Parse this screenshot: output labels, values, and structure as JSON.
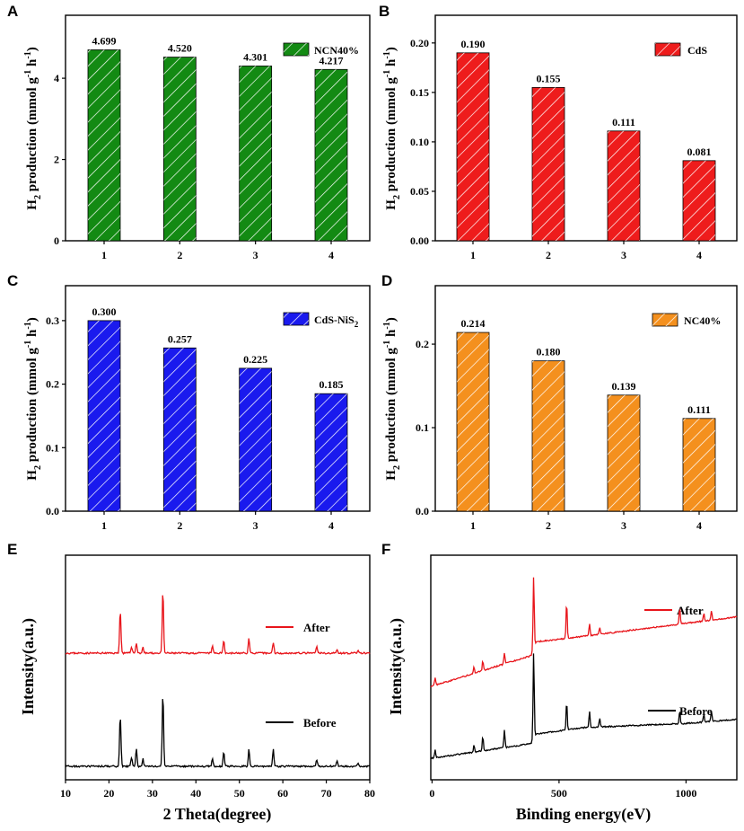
{
  "chart_data": [
    {
      "panel": "A",
      "type": "bar",
      "categories": [
        "1",
        "2",
        "3",
        "4"
      ],
      "values": [
        4.699,
        4.52,
        4.301,
        4.217
      ],
      "value_labels": [
        "4.699",
        "4.520",
        "4.301",
        "4.217"
      ],
      "legend": "NCN40%",
      "color": "#138a13",
      "ylabel": "H2 production (mmol g-1 h-1)",
      "ylim": [
        0,
        5.55
      ],
      "yticks": [
        0,
        2,
        4
      ],
      "ytick_labels": [
        "0",
        "2",
        "4"
      ]
    },
    {
      "panel": "B",
      "type": "bar",
      "categories": [
        "1",
        "2",
        "3",
        "4"
      ],
      "values": [
        0.19,
        0.155,
        0.111,
        0.081
      ],
      "value_labels": [
        "0.190",
        "0.155",
        "0.111",
        "0.081"
      ],
      "legend": "CdS",
      "color": "#ee1c1c",
      "ylabel": "H2 production (mmol g-1 h-1)",
      "ylim": [
        0,
        0.228
      ],
      "yticks": [
        0,
        0.05,
        0.1,
        0.15,
        0.2
      ],
      "ytick_labels": [
        "0.00",
        "0.05",
        "0.10",
        "0.15",
        "0.20"
      ]
    },
    {
      "panel": "C",
      "type": "bar",
      "categories": [
        "1",
        "2",
        "3",
        "4"
      ],
      "values": [
        0.3,
        0.257,
        0.225,
        0.185
      ],
      "value_labels": [
        "0.300",
        "0.257",
        "0.225",
        "0.185"
      ],
      "legend": "CdS-NiS2",
      "color": "#1a1aee",
      "ylabel": "H2 production (mmol g-1 h-1)",
      "ylim": [
        0,
        0.355
      ],
      "yticks": [
        0,
        0.1,
        0.2,
        0.3
      ],
      "ytick_labels": [
        "0.0",
        "0.1",
        "0.2",
        "0.3"
      ]
    },
    {
      "panel": "D",
      "type": "bar",
      "categories": [
        "1",
        "2",
        "3",
        "4"
      ],
      "values": [
        0.214,
        0.18,
        0.139,
        0.111
      ],
      "value_labels": [
        "0.214",
        "0.180",
        "0.139",
        "0.111"
      ],
      "legend": "NC40%",
      "color": "#f4901e",
      "ylabel": "H2 production (mmol g-1 h-1)",
      "ylim": [
        0,
        0.27
      ],
      "yticks": [
        0,
        0.1,
        0.2
      ],
      "ytick_labels": [
        "0.0",
        "0.1",
        "0.2"
      ]
    },
    {
      "panel": "E",
      "type": "line",
      "xlabel": "2 Theta(degree)",
      "ylabel": "Intensity(a.u.)",
      "xlim": [
        10,
        80
      ],
      "xticks": [
        10,
        20,
        30,
        40,
        50,
        60,
        70,
        80
      ],
      "series": [
        {
          "name": "After",
          "color": "#e8151b",
          "peaks": [
            [
              22.6,
              58
            ],
            [
              25.2,
              9
            ],
            [
              26.3,
              14
            ],
            [
              27.8,
              8
            ],
            [
              32.4,
              85
            ],
            [
              43.8,
              9
            ],
            [
              46.4,
              18
            ],
            [
              52.2,
              20
            ],
            [
              57.8,
              15
            ],
            [
              67.8,
              9
            ],
            [
              72.5,
              5
            ],
            [
              77.3,
              4
            ]
          ]
        },
        {
          "name": "Before",
          "color": "#000000",
          "peaks": [
            [
              22.6,
              70
            ],
            [
              25.2,
              12
            ],
            [
              26.3,
              25
            ],
            [
              27.8,
              10
            ],
            [
              32.4,
              100
            ],
            [
              43.8,
              10
            ],
            [
              46.4,
              20
            ],
            [
              52.2,
              23
            ],
            [
              57.8,
              23
            ],
            [
              67.8,
              9
            ],
            [
              72.5,
              8
            ],
            [
              77.3,
              5
            ]
          ]
        }
      ]
    },
    {
      "panel": "F",
      "type": "line",
      "xlabel": "Binding energy(eV)",
      "ylabel": "Intensity(a.u.)",
      "xlim": [
        -5,
        1200
      ],
      "xticks": [
        0,
        500,
        1000
      ],
      "series": [
        {
          "name": "After",
          "color": "#e8151b",
          "baseline": [
            [
              0,
              0
            ],
            [
              390,
              38
            ],
            [
              410,
              55
            ],
            [
              600,
              62
            ],
            [
              1000,
              78
            ],
            [
              1200,
              86
            ]
          ],
          "peaks": [
            [
              12,
              10
            ],
            [
              165,
              8
            ],
            [
              200,
              12
            ],
            [
              285,
              14
            ],
            [
              400,
              90
            ],
            [
              530,
              45
            ],
            [
              620,
              15
            ],
            [
              660,
              9
            ],
            [
              975,
              20
            ],
            [
              1070,
              10
            ],
            [
              1100,
              12
            ]
          ]
        },
        {
          "name": "Before",
          "color": "#000000",
          "baseline": [
            [
              0,
              0
            ],
            [
              390,
              18
            ],
            [
              410,
              30
            ],
            [
              600,
              38
            ],
            [
              1000,
              43
            ],
            [
              1200,
              48
            ]
          ],
          "peaks": [
            [
              12,
              10
            ],
            [
              165,
              8
            ],
            [
              200,
              18
            ],
            [
              285,
              22
            ],
            [
              400,
              108
            ],
            [
              530,
              35
            ],
            [
              620,
              20
            ],
            [
              660,
              10
            ],
            [
              975,
              16
            ],
            [
              1070,
              10
            ],
            [
              1100,
              14
            ]
          ]
        }
      ]
    }
  ],
  "panel_letters": [
    "A",
    "B",
    "C",
    "D",
    "E",
    "F"
  ],
  "axis_text": {
    "h2_part1": "H",
    "h2_sub": "2",
    "h2_part2": " production (mmol g",
    "h2_sup1": "-1",
    "h2_part3": " h",
    "h2_sup2": "-1",
    "h2_close": ")",
    "cds_nis": "CdS-NiS",
    "cds_nis_sub": "2"
  }
}
